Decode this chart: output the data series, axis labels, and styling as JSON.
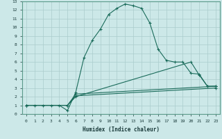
{
  "xlabel": "Humidex (Indice chaleur)",
  "xlim": [
    -0.5,
    23.5
  ],
  "ylim": [
    0,
    13
  ],
  "xticks": [
    0,
    1,
    2,
    3,
    4,
    5,
    6,
    7,
    8,
    9,
    10,
    11,
    12,
    13,
    14,
    15,
    16,
    17,
    18,
    19,
    20,
    21,
    22,
    23
  ],
  "yticks": [
    0,
    1,
    2,
    3,
    4,
    5,
    6,
    7,
    8,
    9,
    10,
    11,
    12,
    13
  ],
  "bg_color": "#cce8e8",
  "grid_color": "#aacccc",
  "line_color": "#1a6b5a",
  "lines": [
    {
      "x": [
        0,
        1,
        2,
        3,
        4,
        5,
        6,
        7,
        8,
        9,
        10,
        11,
        12,
        13,
        14,
        15,
        16,
        17,
        18,
        19,
        20,
        21,
        22,
        23
      ],
      "y": [
        1,
        1,
        1,
        1,
        1,
        0.4,
        2.5,
        6.5,
        8.5,
        9.8,
        11.5,
        12.2,
        12.7,
        12.5,
        12.2,
        10.5,
        7.5,
        6.2,
        6,
        6,
        4.7,
        4.6,
        3.2,
        3.2
      ]
    },
    {
      "x": [
        0,
        5,
        6,
        23
      ],
      "y": [
        1,
        1,
        2.3,
        3.2
      ]
    },
    {
      "x": [
        0,
        5,
        6,
        23
      ],
      "y": [
        1,
        1,
        2.1,
        3.0
      ]
    },
    {
      "x": [
        0,
        5,
        6,
        20,
        21,
        22,
        23
      ],
      "y": [
        1,
        1,
        2,
        6.0,
        4.5,
        3.2,
        3.2
      ]
    }
  ]
}
